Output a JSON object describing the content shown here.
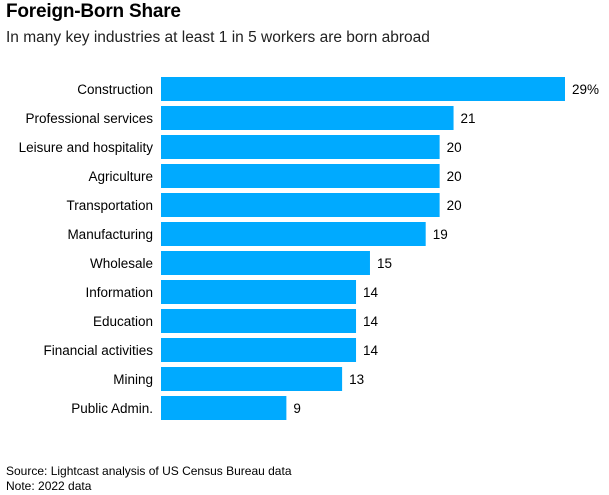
{
  "chart_data": {
    "type": "bar",
    "orientation": "horizontal",
    "title": "Foreign-Born Share",
    "subtitle": "In many key industries at least 1 in 5 workers are born abroad",
    "categories": [
      "Construction",
      "Professional services",
      "Leisure and hospitality",
      "Agriculture",
      "Transportation",
      "Manufacturing",
      "Wholesale",
      "Information",
      "Education",
      "Financial activities",
      "Mining",
      "Public Admin."
    ],
    "values": [
      29,
      21,
      20,
      20,
      20,
      19,
      15,
      14,
      14,
      14,
      13,
      9
    ],
    "value_labels": [
      "29%",
      "21",
      "20",
      "20",
      "20",
      "19",
      "15",
      "14",
      "14",
      "14",
      "13",
      "9"
    ],
    "xlim": [
      0,
      29
    ],
    "bar_color": "#00aaff",
    "source": "Source: Lightcast analysis of US Census Bureau data",
    "note": "Note: 2022 data"
  }
}
